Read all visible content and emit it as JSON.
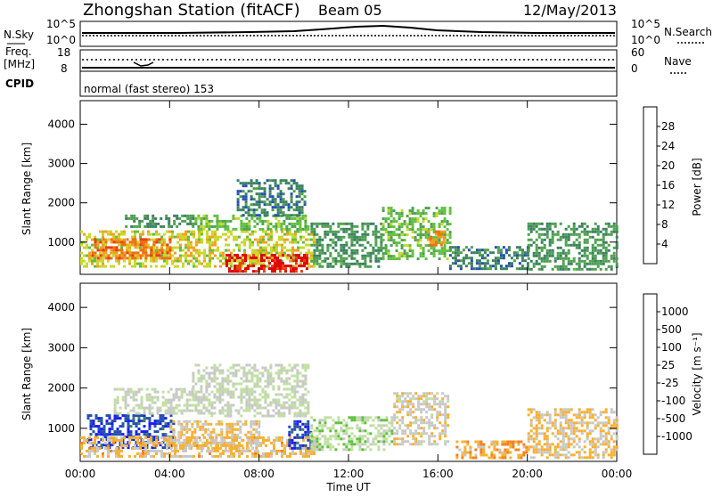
{
  "header": {
    "station": "Zhongshan Station (fitACF)",
    "beam": "Beam 05",
    "date": "12/May/2013"
  },
  "status_panel": {
    "nsky_label": "N.Sky",
    "nsearch_label": "N.Search",
    "noise_left_ticks": [
      "10^5",
      "10^0"
    ],
    "noise_right_ticks": [
      "10^5",
      "10^0"
    ],
    "freq_label": "Freq.",
    "freq_unit": "[MHz]",
    "freq_ticks": [
      "18",
      "8"
    ],
    "nave_label": "Nave",
    "nave_ticks": [
      "60",
      "0"
    ],
    "cpid_label": "CPID",
    "cpid_text": "normal (fast stereo) 153"
  },
  "x_axis": {
    "label": "Time UT",
    "ticks": [
      "00:00",
      "04:00",
      "08:00",
      "12:00",
      "16:00",
      "20:00",
      "00:00"
    ]
  },
  "colors": {
    "power_scale": [
      "#1a1aff",
      "#2450b0",
      "#3c8060",
      "#4fa050",
      "#60c040",
      "#c8d82a",
      "#f2a020",
      "#f07010",
      "#e84010",
      "#e00000"
    ],
    "velocity_scale": [
      "#e00000",
      "#f05010",
      "#f58020",
      "#f8b030",
      "#c8c8c8",
      "#c0e0a0",
      "#60c040",
      "#3c8060",
      "#2450b0",
      "#1a1aff"
    ]
  },
  "chart_data": [
    {
      "type": "heatmap",
      "panel": "power",
      "ylabel": "Slant Range [km]",
      "xlabel": "",
      "yticks": [
        1000,
        2000,
        3000,
        4000
      ],
      "ylim": [
        180,
        4600
      ],
      "x_range_hours": [
        0,
        24
      ],
      "colorbar_label": "Power [dB]",
      "colorbar_ticks": [
        "4",
        "8",
        "12",
        "16",
        "20",
        "24",
        "28"
      ],
      "colorbar_range": [
        0,
        32
      ],
      "regions": [
        {
          "t0": 0.0,
          "t1": 10.5,
          "r0": 400,
          "r1": 1300,
          "value": 18
        },
        {
          "t0": 0.5,
          "t1": 4.0,
          "r0": 600,
          "r1": 1100,
          "value": 24
        },
        {
          "t0": 6.5,
          "t1": 10.2,
          "r0": 250,
          "r1": 700,
          "value": 30
        },
        {
          "t0": 5.0,
          "t1": 10.2,
          "r0": 1300,
          "r1": 1700,
          "value": 14
        },
        {
          "t0": 7.0,
          "t1": 10.0,
          "r0": 1700,
          "r1": 2600,
          "value": 8
        },
        {
          "t0": 2.0,
          "t1": 5.0,
          "r0": 1400,
          "r1": 1700,
          "value": 10
        },
        {
          "t0": 10.3,
          "t1": 13.5,
          "r0": 400,
          "r1": 1500,
          "value": 10
        },
        {
          "t0": 13.5,
          "t1": 16.5,
          "r0": 600,
          "r1": 1900,
          "value": 14
        },
        {
          "t0": 15.5,
          "t1": 16.3,
          "r0": 900,
          "r1": 1300,
          "value": 22
        },
        {
          "t0": 16.5,
          "t1": 20.0,
          "r0": 300,
          "r1": 900,
          "value": 8
        },
        {
          "t0": 20.0,
          "t1": 24.0,
          "r0": 300,
          "r1": 1500,
          "value": 10
        }
      ]
    },
    {
      "type": "heatmap",
      "panel": "velocity",
      "ylabel": "Slant Range [km]",
      "xlabel": "Time UT",
      "yticks": [
        1000,
        2000,
        3000,
        4000
      ],
      "ylim": [
        180,
        4600
      ],
      "x_range_hours": [
        0,
        24
      ],
      "colorbar_label": "Velocity [m s⁻¹]",
      "colorbar_ticks": [
        "-1000",
        "-500",
        "-100",
        "-25",
        "25",
        "100",
        "500",
        "1000"
      ],
      "colorbar_range": [
        -1200,
        1200
      ],
      "regions": [
        {
          "t0": 0.3,
          "t1": 4.2,
          "r0": 500,
          "r1": 1350,
          "value": 900
        },
        {
          "t0": 0.0,
          "t1": 10.5,
          "r0": 300,
          "r1": 800,
          "value": -300
        },
        {
          "t0": 4.0,
          "t1": 8.0,
          "r0": 500,
          "r1": 1200,
          "value": -200
        },
        {
          "t0": 9.3,
          "t1": 10.3,
          "r0": 500,
          "r1": 1200,
          "value": 900
        },
        {
          "t0": 5.0,
          "t1": 10.2,
          "r0": 1300,
          "r1": 2600,
          "value": 0
        },
        {
          "t0": 1.5,
          "t1": 5.0,
          "r0": 1400,
          "r1": 2000,
          "value": 0
        },
        {
          "t0": 10.3,
          "t1": 14.0,
          "r0": 500,
          "r1": 1300,
          "value": 150
        },
        {
          "t0": 14.0,
          "t1": 16.5,
          "r0": 600,
          "r1": 1900,
          "value": -150
        },
        {
          "t0": 16.8,
          "t1": 20.0,
          "r0": 250,
          "r1": 700,
          "value": -400
        },
        {
          "t0": 20.0,
          "t1": 24.0,
          "r0": 300,
          "r1": 1500,
          "value": -250
        }
      ]
    }
  ]
}
